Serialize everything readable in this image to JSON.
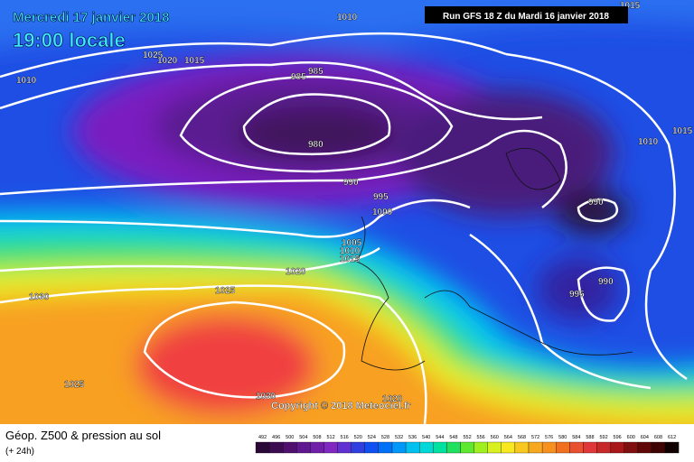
{
  "header": {
    "date": "Mercredi 17 janvier 2018",
    "time": "19:00 locale",
    "run": "Run GFS 18 Z du Mardi 16 janvier 2018"
  },
  "isobars": {
    "labels": [
      "1010",
      "1025",
      "1020",
      "1015",
      "1010",
      "1015",
      "985",
      "985",
      "980",
      "990",
      "995",
      "1000",
      "1005",
      "1010",
      "1015",
      "1020",
      "1025",
      "1030",
      "1025",
      "1030",
      "1020",
      "990",
      "990",
      "995",
      "1010",
      "1015"
    ]
  },
  "copyright": "Copyright © 2018 Meteociel.fr",
  "legend": {
    "title": "Géop. Z500 & pression au sol",
    "subtitle": "(+ 24h)",
    "scale": {
      "values": [
        492,
        496,
        500,
        504,
        508,
        512,
        516,
        520,
        524,
        528,
        532,
        536,
        540,
        544,
        548,
        552,
        556,
        560,
        564,
        568,
        572,
        576,
        580,
        584,
        588,
        592,
        596,
        600,
        604,
        608,
        612
      ],
      "colors": [
        "#2a0838",
        "#3c0c50",
        "#501070",
        "#601890",
        "#7020a8",
        "#8028c0",
        "#6030d0",
        "#3040e0",
        "#1050f0",
        "#0070f8",
        "#0098f8",
        "#00c0f0",
        "#00d8d8",
        "#00e0a0",
        "#20e060",
        "#60e830",
        "#a0f020",
        "#d8f020",
        "#f8e820",
        "#f8c820",
        "#f8a820",
        "#f89020",
        "#f07020",
        "#e85030",
        "#e03838",
        "#c82828",
        "#a81818",
        "#801010",
        "#600808",
        "#400404",
        "#100000"
      ]
    }
  }
}
